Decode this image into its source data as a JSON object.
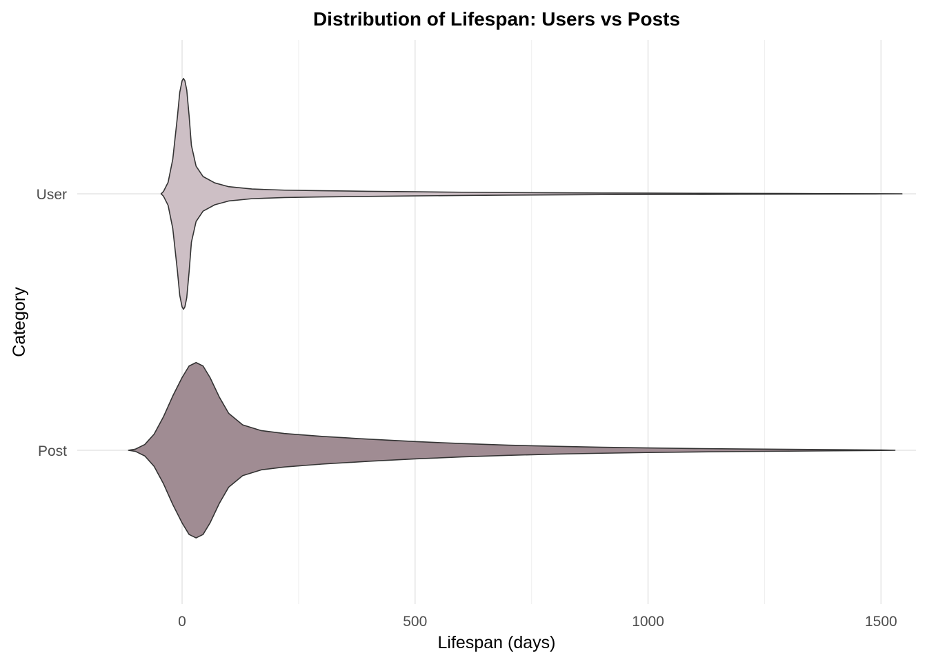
{
  "chart_data": {
    "type": "violin",
    "title": "Distribution of Lifespan: Users vs Posts",
    "xlabel": "Lifespan (days)",
    "ylabel": "Category",
    "xlim": [
      -225,
      1575
    ],
    "x_ticks": [
      0,
      500,
      1000,
      1500
    ],
    "grid": true,
    "legend": "none",
    "categories": [
      "Post",
      "User"
    ],
    "series": [
      {
        "category": "Post",
        "color": "#a08c93",
        "density": [
          [
            -115,
            0.0
          ],
          [
            -100,
            0.01
          ],
          [
            -80,
            0.05
          ],
          [
            -60,
            0.14
          ],
          [
            -40,
            0.29
          ],
          [
            -20,
            0.47
          ],
          [
            0,
            0.63
          ],
          [
            15,
            0.73
          ],
          [
            30,
            0.76
          ],
          [
            45,
            0.73
          ],
          [
            60,
            0.63
          ],
          [
            80,
            0.46
          ],
          [
            100,
            0.32
          ],
          [
            130,
            0.22
          ],
          [
            170,
            0.17
          ],
          [
            220,
            0.145
          ],
          [
            300,
            0.12
          ],
          [
            400,
            0.096
          ],
          [
            500,
            0.075
          ],
          [
            600,
            0.058
          ],
          [
            700,
            0.044
          ],
          [
            800,
            0.034
          ],
          [
            900,
            0.026
          ],
          [
            1000,
            0.02
          ],
          [
            1100,
            0.015
          ],
          [
            1200,
            0.011
          ],
          [
            1300,
            0.008
          ],
          [
            1400,
            0.005
          ],
          [
            1500,
            0.002
          ],
          [
            1530,
            0.0
          ]
        ]
      },
      {
        "category": "User",
        "color": "#cdbfc5",
        "density": [
          [
            -45,
            0.0
          ],
          [
            -40,
            0.02
          ],
          [
            -30,
            0.1
          ],
          [
            -20,
            0.3
          ],
          [
            -10,
            0.67
          ],
          [
            -5,
            0.88
          ],
          [
            0,
            0.98
          ],
          [
            3,
            1.0
          ],
          [
            6,
            0.98
          ],
          [
            10,
            0.9
          ],
          [
            15,
            0.68
          ],
          [
            20,
            0.42
          ],
          [
            30,
            0.24
          ],
          [
            45,
            0.15
          ],
          [
            70,
            0.095
          ],
          [
            100,
            0.062
          ],
          [
            150,
            0.042
          ],
          [
            220,
            0.032
          ],
          [
            300,
            0.027
          ],
          [
            400,
            0.022
          ],
          [
            500,
            0.018
          ],
          [
            600,
            0.014
          ],
          [
            700,
            0.011
          ],
          [
            800,
            0.009
          ],
          [
            900,
            0.007
          ],
          [
            1000,
            0.006
          ],
          [
            1100,
            0.005
          ],
          [
            1200,
            0.004
          ],
          [
            1300,
            0.003
          ],
          [
            1400,
            0.002
          ],
          [
            1500,
            0.001
          ],
          [
            1545,
            0.0
          ]
        ]
      }
    ]
  }
}
